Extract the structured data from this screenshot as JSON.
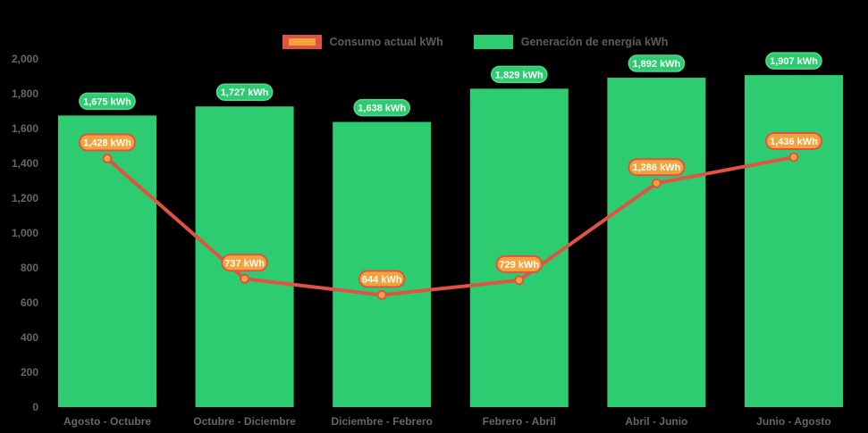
{
  "background_color": "#000000",
  "legend": {
    "position": "top",
    "items": [
      {
        "label": "Consumo actual kWh",
        "swatch": "line-marker-swatch",
        "line_color": "#E05243",
        "marker_color": "#F3A33B"
      },
      {
        "label": "Generación de energía kWh",
        "swatch": "bar-swatch",
        "color": "#2ECC71"
      }
    ]
  },
  "chart_data": {
    "type": "bar",
    "subtype": "bar-and-line-combo",
    "title": "",
    "xlabel": "",
    "ylabel": "",
    "categories": [
      "Agosto - Octubre",
      "Octubre - Diciembre",
      "Diciembre - Febrero",
      "Febrero - Abril",
      "Abril - Junio",
      "Junio - Agosto"
    ],
    "series": [
      {
        "name": "Generación de energía kWh",
        "type": "bar",
        "values": [
          1675,
          1727,
          1638,
          1829,
          1892,
          1907
        ],
        "labels": [
          "1,675 kWh",
          "1,727 kWh",
          "1,638 kWh",
          "1,829 kWh",
          "1,892 kWh",
          "1,907 kWh"
        ],
        "color": "#2ECC71"
      },
      {
        "name": "Consumo actual kWh",
        "type": "line",
        "values": [
          1428,
          737,
          644,
          729,
          1286,
          1436
        ],
        "labels": [
          "1,428 kWh",
          "737 kWh",
          "644 kWh",
          "729 kWh",
          "1,286 kWh",
          "1,436 kWh"
        ],
        "color": "#E05243",
        "marker_color": "#F3A33B"
      }
    ],
    "ylim": [
      0,
      2000
    ],
    "yticks": [
      0,
      200,
      400,
      600,
      800,
      1000,
      1200,
      1400,
      1600,
      1800,
      2000
    ],
    "ytick_labels": [
      "0",
      "200",
      "400",
      "600",
      "800",
      "1,000",
      "1,200",
      "1,400",
      "1,600",
      "1,800",
      "2,000"
    ],
    "grid": false,
    "legend_position": "top",
    "colors": {
      "axis_text": "#666666",
      "value_label_text": "#FFFFFF",
      "green_pill_fill": "#2ECC71",
      "green_pill_border": "#57D68C",
      "orange_pill_fill": "#F3A33B",
      "orange_pill_border": "#E05243"
    }
  }
}
